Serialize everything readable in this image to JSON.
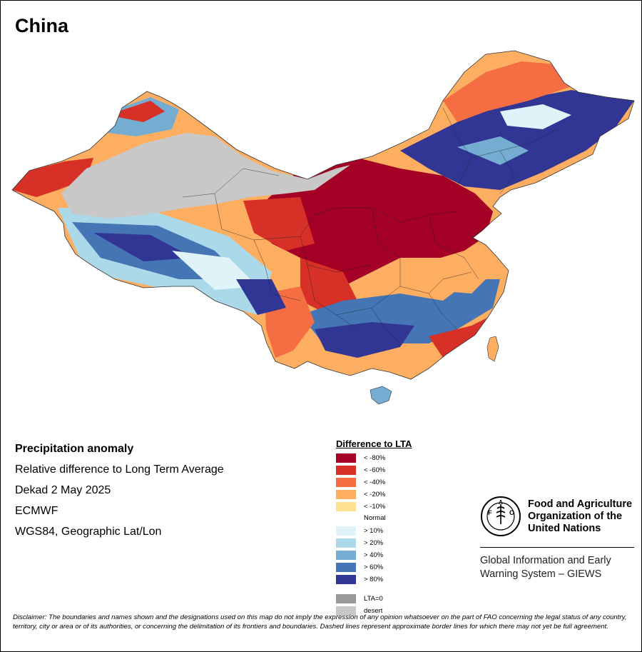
{
  "title": "China",
  "info": {
    "heading": "Precipitation anomaly",
    "line1": "Relative difference to Long Term Average",
    "line2": "Dekad 2 May 2025",
    "line3": "ECMWF",
    "line4": "WGS84, Geographic Lat/Lon"
  },
  "legend": {
    "title": "Difference to LTA",
    "items": [
      {
        "label": "< -80%",
        "color": "#a50026"
      },
      {
        "label": "< -60%",
        "color": "#d73027"
      },
      {
        "label": "< -40%",
        "color": "#f46d43"
      },
      {
        "label": "< -20%",
        "color": "#fdae61"
      },
      {
        "label": "< -10%",
        "color": "#fee090"
      },
      {
        "label": "Normal",
        "color": "#ffffff"
      },
      {
        "label": "> 10%",
        "color": "#e0f3f8"
      },
      {
        "label": "> 20%",
        "color": "#abd9e9"
      },
      {
        "label": "> 40%",
        "color": "#74add1"
      },
      {
        "label": "> 60%",
        "color": "#4575b4"
      },
      {
        "label": "> 80%",
        "color": "#313695"
      }
    ],
    "lta_zero": {
      "label": "LTA=0",
      "color": "#999999"
    },
    "desert": {
      "label": "desert",
      "color": "#c8c8c8"
    }
  },
  "org": {
    "name_line1": "Food and Agriculture",
    "name_line2": "Organization of the",
    "name_line3": "United Nations",
    "system_line1": "Global Information and Early",
    "system_line2": "Warning System – GIEWS",
    "logo_text": "FAO",
    "logo_motto": "FIAT PANIS"
  },
  "disclaimer": "Disclaimer: The boundaries and names shown and the designations used on this map do not imply the expression of any opinion whatsoever on the part of FAO concerning the legal status of any country, territory, city or area or of its authorities, or concerning the delimitation of its frontiers and boundaries. Dashed lines represent approximate border lines for which there may not yet be full agreement."
}
